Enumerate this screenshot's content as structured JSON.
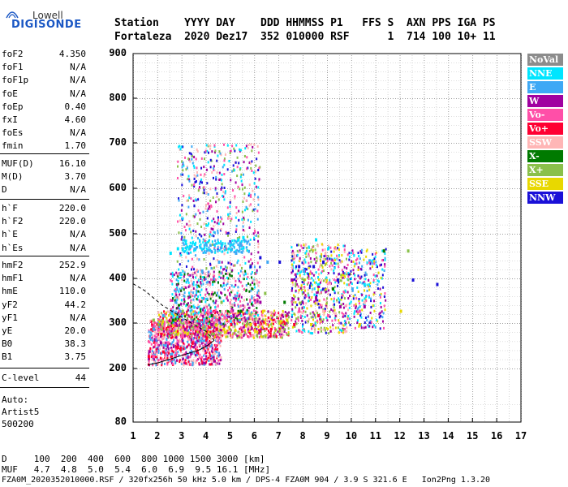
{
  "logo": {
    "line1": "Lowell",
    "line2": "DIGISONDE"
  },
  "header": {
    "labels": "Station    YYYY DAY    DDD HHMMSS P1   FFS S  AXN PPS IGA PS",
    "values": "Fortaleza  2020 Dez17  352 010000 RSF      1  714 100 10+ 11"
  },
  "params_group1": [
    {
      "name": "foF2",
      "value": "4.350"
    },
    {
      "name": "foF1",
      "value": "N/A"
    },
    {
      "name": "foF1p",
      "value": "N/A"
    },
    {
      "name": "foE",
      "value": "N/A"
    },
    {
      "name": "foEp",
      "value": "0.40"
    },
    {
      "name": "fxI",
      "value": "4.60"
    },
    {
      "name": "foEs",
      "value": "N/A"
    },
    {
      "name": "fmin",
      "value": "1.70"
    }
  ],
  "params_group2": [
    {
      "name": "MUF(D)",
      "value": "16.10"
    },
    {
      "name": "M(D)",
      "value": "3.70"
    },
    {
      "name": "D",
      "value": "N/A"
    }
  ],
  "params_group3": [
    {
      "name": "h`F",
      "value": "220.0"
    },
    {
      "name": "h`F2",
      "value": "220.0"
    },
    {
      "name": "h`E",
      "value": "N/A"
    },
    {
      "name": "h`Es",
      "value": "N/A"
    }
  ],
  "params_group4": [
    {
      "name": "hmF2",
      "value": "252.9"
    },
    {
      "name": "hmF1",
      "value": "N/A"
    },
    {
      "name": "hmE",
      "value": "110.0"
    },
    {
      "name": "yF2",
      "value": "44.2"
    },
    {
      "name": "yF1",
      "value": "N/A"
    },
    {
      "name": "yE",
      "value": "20.0"
    },
    {
      "name": "B0",
      "value": "38.3"
    },
    {
      "name": "B1",
      "value": "3.75"
    }
  ],
  "params_group5": [
    {
      "name": "C-level",
      "value": "44"
    }
  ],
  "autoscale": {
    "line1": "Auto:",
    "line2": "Artist5",
    "line3": "500200"
  },
  "legend": [
    {
      "label": "NoVal",
      "color": "#8c8c8c"
    },
    {
      "label": "NNE",
      "color": "#00e5ff"
    },
    {
      "label": "E",
      "color": "#3ea8f5"
    },
    {
      "label": "W",
      "color": "#a000a0"
    },
    {
      "label": "Vo-",
      "color": "#ff4fa8"
    },
    {
      "label": "Vo+",
      "color": "#ff0033"
    },
    {
      "label": "SSW",
      "color": "#ffb6b6"
    },
    {
      "label": "X-",
      "color": "#007a00"
    },
    {
      "label": "X+",
      "color": "#8ac04a"
    },
    {
      "label": "SSE",
      "color": "#e8d800"
    },
    {
      "label": "NNW",
      "color": "#1a10d8"
    }
  ],
  "yticks": [
    "900",
    "800",
    "700",
    "600",
    "500",
    "400",
    "300",
    "200",
    "80"
  ],
  "xticks": [
    "1",
    "2",
    "3",
    "4",
    "5",
    "6",
    "7",
    "8",
    "9",
    "10",
    "11",
    "12",
    "13",
    "14",
    "15",
    "16",
    "17"
  ],
  "bottom": {
    "d_row": "D     100  200  400  600  800 1000 1500 3000 [km]",
    "muf_row": "MUF   4.7  4.8  5.0  5.4  6.0  6.9  9.5 16.1 [MHz]",
    "footer": "FZA0M_2020352010000.RSF / 320fx256h 50 kHz 5.0 km / DPS-4 FZA0M 904 / 3.9 S 321.6 E   Ion2Png 1.3.20"
  },
  "chart_data": {
    "type": "scatter",
    "xlabel": "",
    "ylabel": "",
    "xlim": [
      1,
      17
    ],
    "ylim": [
      80,
      900
    ],
    "x_ticks": [
      1,
      2,
      3,
      4,
      5,
      6,
      7,
      8,
      9,
      10,
      11,
      12,
      13,
      14,
      15,
      16,
      17
    ],
    "y_ticks": [
      80,
      200,
      300,
      400,
      500,
      600,
      700,
      800,
      900
    ],
    "grid": true,
    "legend_position": "right",
    "series": [
      {
        "name": "NNE",
        "points": [
          [
            2.5,
            460
          ],
          [
            2.8,
            470
          ],
          [
            3.0,
            470
          ],
          [
            3.3,
            475
          ],
          [
            3.5,
            480
          ],
          [
            5.3,
            490
          ],
          [
            5.5,
            495
          ],
          [
            8.5,
            490
          ],
          [
            9.0,
            470
          ],
          [
            10.5,
            390
          ]
        ]
      },
      {
        "name": "E",
        "points": [
          [
            1.8,
            290
          ],
          [
            2.2,
            320
          ],
          [
            2.6,
            330
          ],
          [
            3.2,
            400
          ],
          [
            3.8,
            420
          ],
          [
            4.5,
            440
          ],
          [
            5.2,
            460
          ],
          [
            6.5,
            440
          ],
          [
            8.0,
            420
          ],
          [
            10.0,
            380
          ]
        ]
      },
      {
        "name": "W",
        "points": [
          [
            2.1,
            260
          ],
          [
            3.1,
            290
          ],
          [
            4.2,
            300
          ],
          [
            5.1,
            320
          ],
          [
            6.2,
            350
          ],
          [
            7.5,
            400
          ],
          [
            8.5,
            360
          ],
          [
            9.5,
            340
          ],
          [
            10.5,
            340
          ]
        ]
      },
      {
        "name": "Vo-",
        "points": [
          [
            1.8,
            230
          ],
          [
            2.4,
            260
          ],
          [
            3.0,
            275
          ],
          [
            3.6,
            290
          ],
          [
            4.4,
            310
          ],
          [
            5.0,
            330
          ],
          [
            6.0,
            350
          ],
          [
            7.8,
            330
          ],
          [
            9.0,
            320
          ],
          [
            10.3,
            330
          ]
        ]
      },
      {
        "name": "Vo+",
        "points": [
          [
            1.6,
            230
          ],
          [
            2.2,
            240
          ],
          [
            2.8,
            250
          ],
          [
            3.4,
            260
          ],
          [
            4.0,
            270
          ],
          [
            4.4,
            290
          ],
          [
            5.0,
            300
          ],
          [
            6.0,
            300
          ],
          [
            7.6,
            300
          ],
          [
            8.6,
            320
          ]
        ]
      },
      {
        "name": "SSW",
        "points": [
          [
            2.0,
            270
          ],
          [
            3.5,
            300
          ],
          [
            5.5,
            310
          ],
          [
            7.0,
            320
          ],
          [
            8.8,
            330
          ],
          [
            10.5,
            350
          ]
        ]
      },
      {
        "name": "X-",
        "points": [
          [
            2.6,
            310
          ],
          [
            4.2,
            320
          ],
          [
            5.4,
            330
          ],
          [
            7.2,
            350
          ],
          [
            9.2,
            380
          ],
          [
            11.3,
            465
          ]
        ]
      },
      {
        "name": "X+",
        "points": [
          [
            1.8,
            310
          ],
          [
            3.0,
            330
          ],
          [
            4.6,
            350
          ],
          [
            6.4,
            370
          ],
          [
            8.0,
            400
          ],
          [
            12.3,
            465
          ]
        ]
      },
      {
        "name": "SSE",
        "points": [
          [
            3.2,
            280
          ],
          [
            4.7,
            290
          ],
          [
            5.8,
            300
          ],
          [
            7.3,
            310
          ],
          [
            8.3,
            300
          ],
          [
            10.3,
            300
          ],
          [
            12.0,
            330
          ]
        ]
      },
      {
        "name": "NNW",
        "points": [
          [
            5.8,
            430
          ],
          [
            6.2,
            450
          ],
          [
            7.0,
            440
          ],
          [
            7.8,
            430
          ],
          [
            8.4,
            430
          ],
          [
            8.8,
            440
          ],
          [
            9.4,
            400
          ],
          [
            12.5,
            400
          ],
          [
            13.5,
            390
          ]
        ]
      }
    ]
  }
}
